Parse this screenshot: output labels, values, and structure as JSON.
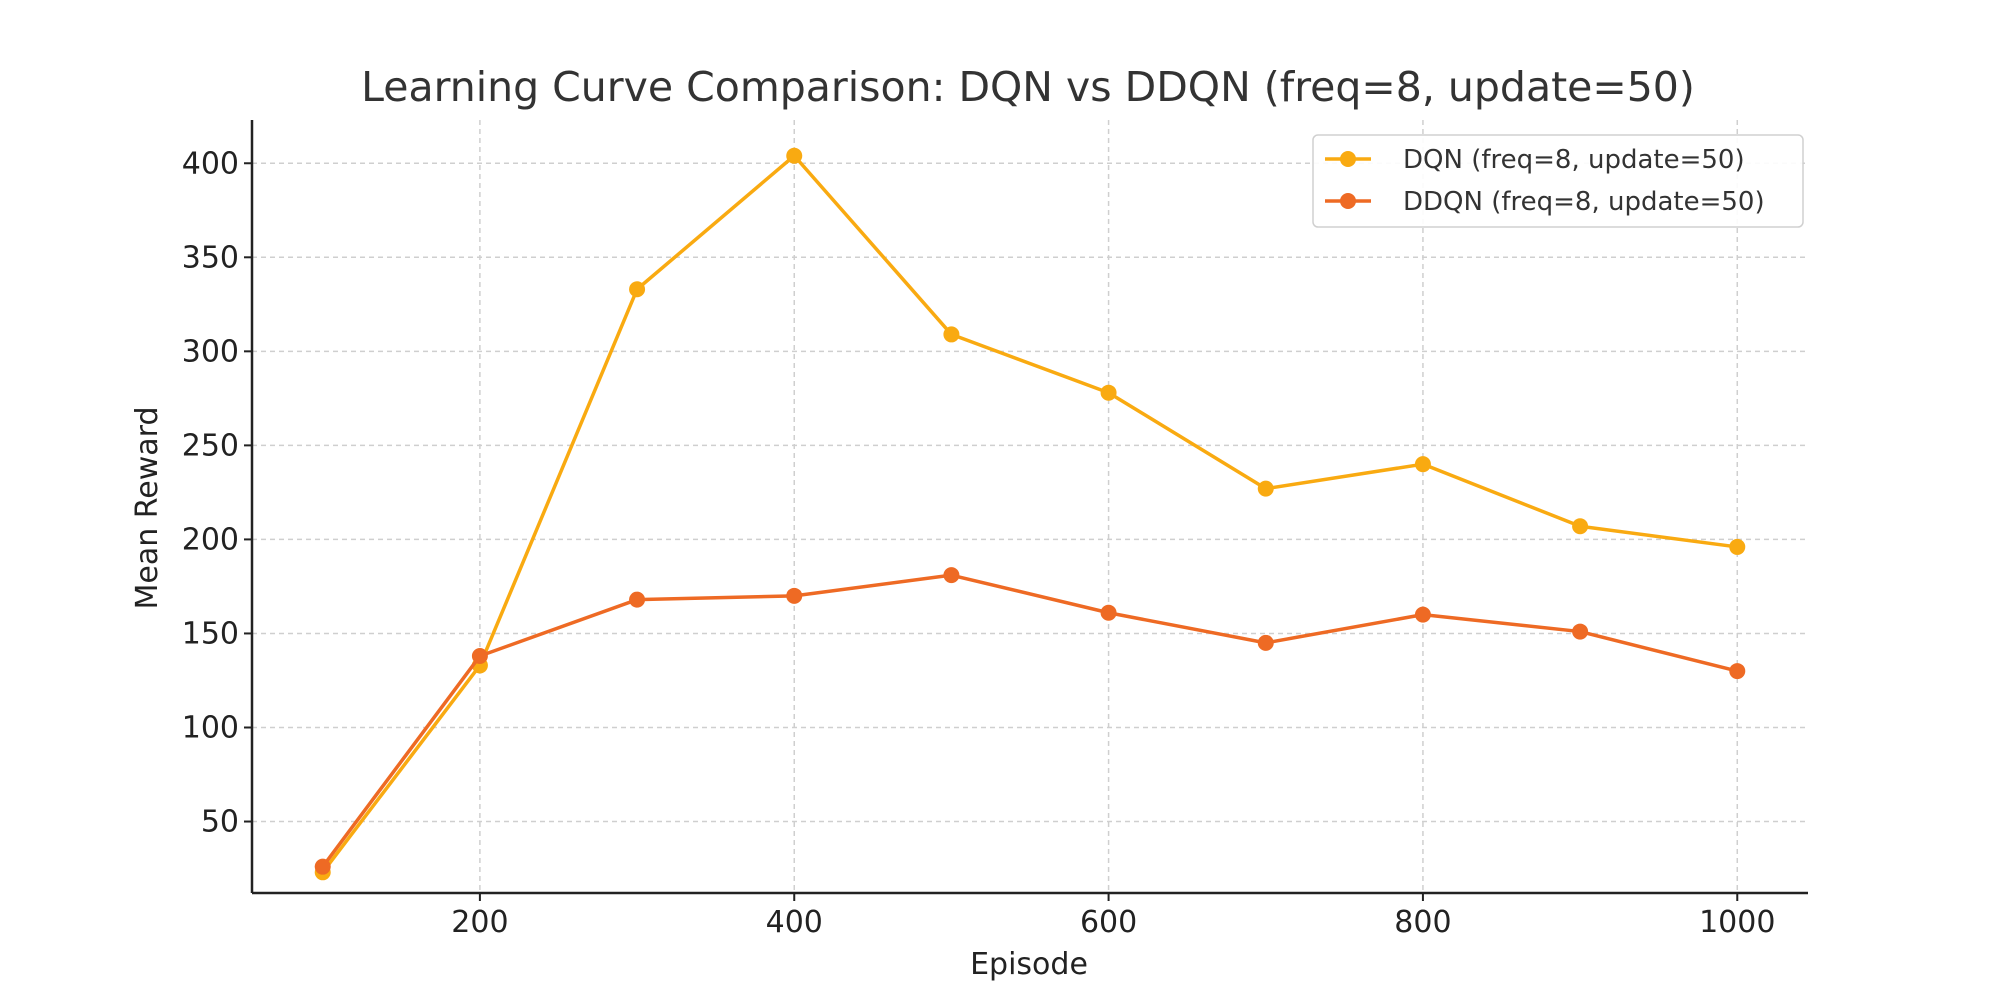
{
  "chart_data": {
    "type": "line",
    "title": "Learning Curve Comparison: DQN vs DDQN (freq=8, update=50)",
    "xlabel": "Episode",
    "ylabel": "Mean Reward",
    "x": [
      100,
      200,
      300,
      400,
      500,
      600,
      700,
      800,
      900,
      1000
    ],
    "xlim": [
      55,
      1045
    ],
    "ylim": [
      12,
      423
    ],
    "xticks": [
      200,
      400,
      600,
      800,
      1000
    ],
    "yticks": [
      50,
      100,
      150,
      200,
      250,
      300,
      350,
      400
    ],
    "grid": true,
    "legend_position": "top-right",
    "series": [
      {
        "name": "DQN (freq=8, update=50)",
        "color": "#F9AA11",
        "marker": "circle",
        "values": [
          23,
          133,
          333,
          404,
          309,
          278,
          227,
          240,
          207,
          196
        ]
      },
      {
        "name": "DDQN (freq=8, update=50)",
        "color": "#EE6A24",
        "marker": "circle",
        "values": [
          26,
          138,
          168,
          170,
          181,
          161,
          145,
          160,
          151,
          130
        ]
      }
    ]
  }
}
